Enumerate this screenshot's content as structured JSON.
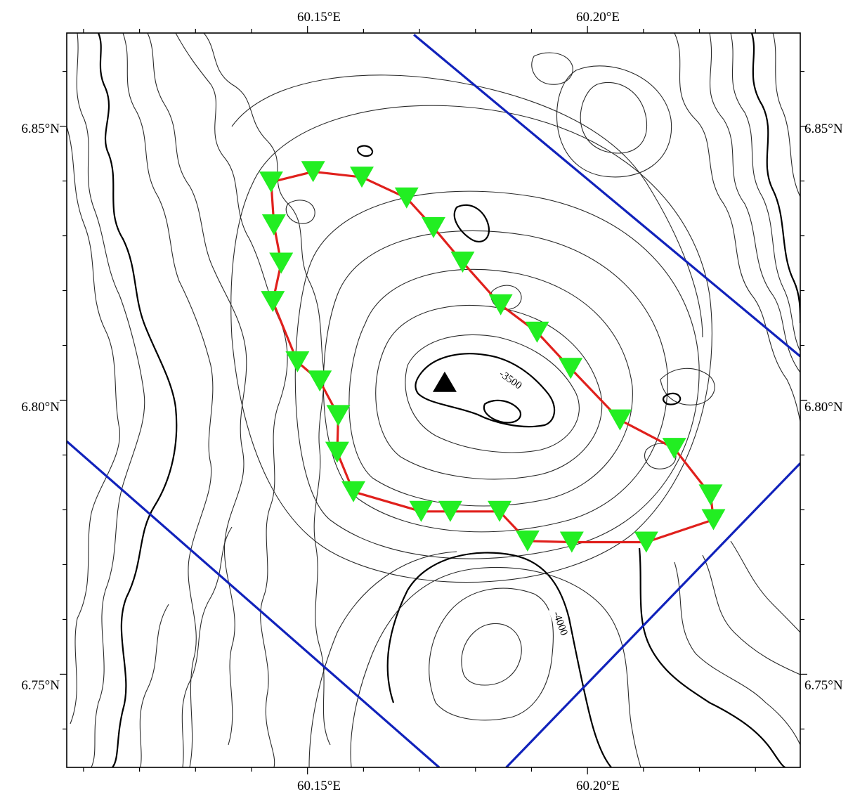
{
  "map": {
    "lon_range": [
      60.107,
      60.238
    ],
    "lat_range": [
      6.733,
      6.867
    ],
    "axis_ticks": {
      "lon": [
        {
          "value": 60.15,
          "label": "60.15°E"
        },
        {
          "value": 60.2,
          "label": "60.20°E"
        }
      ],
      "lat": [
        {
          "value": 6.85,
          "label": "6.85°N"
        },
        {
          "value": 6.8,
          "label": "6.80°N"
        },
        {
          "value": 6.75,
          "label": "6.75°N"
        }
      ]
    },
    "contour_labels": [
      {
        "text": "-3500"
      },
      {
        "text": "-4000"
      }
    ],
    "colors": {
      "survey_line": "#e0201c",
      "station_marker": "#22ee22",
      "boundary_lines": "#1122bb",
      "center_marker": "#000000",
      "contours": "#2a2a2a"
    },
    "center_marker": {
      "lon": 60.1745,
      "lat": 6.8033
    },
    "stations": [
      {
        "lon": 60.1435,
        "lat": 6.8398
      },
      {
        "lon": 60.151,
        "lat": 6.8417
      },
      {
        "lon": 60.1597,
        "lat": 6.8407
      },
      {
        "lon": 60.1677,
        "lat": 6.8369
      },
      {
        "lon": 60.1725,
        "lat": 6.8315
      },
      {
        "lon": 60.1777,
        "lat": 6.8252
      },
      {
        "lon": 60.1845,
        "lat": 6.8174
      },
      {
        "lon": 60.191,
        "lat": 6.8124
      },
      {
        "lon": 60.197,
        "lat": 6.8058
      },
      {
        "lon": 60.2058,
        "lat": 6.7964
      },
      {
        "lon": 60.2155,
        "lat": 6.7912
      },
      {
        "lon": 60.222,
        "lat": 6.7827
      },
      {
        "lon": 60.2225,
        "lat": 6.7782
      },
      {
        "lon": 60.2105,
        "lat": 6.7741
      },
      {
        "lon": 60.1972,
        "lat": 6.7741
      },
      {
        "lon": 60.1893,
        "lat": 6.7743
      },
      {
        "lon": 60.1843,
        "lat": 6.7797
      },
      {
        "lon": 60.1755,
        "lat": 6.7797
      },
      {
        "lon": 60.1703,
        "lat": 6.7797
      },
      {
        "lon": 60.1582,
        "lat": 6.7833
      },
      {
        "lon": 60.1553,
        "lat": 6.7905
      },
      {
        "lon": 60.1555,
        "lat": 6.7972
      },
      {
        "lon": 60.1522,
        "lat": 6.8035
      },
      {
        "lon": 60.1482,
        "lat": 6.807
      },
      {
        "lon": 60.1438,
        "lat": 6.818
      },
      {
        "lon": 60.1453,
        "lat": 6.825
      },
      {
        "lon": 60.144,
        "lat": 6.832
      }
    ],
    "boundary_lines": [
      [
        {
          "lon": 60.169,
          "lat": 6.8667
        },
        {
          "lon": 60.238,
          "lat": 6.808
        }
      ],
      [
        {
          "lon": 60.107,
          "lat": 6.7925
        },
        {
          "lon": 60.1735,
          "lat": 6.733
        }
      ],
      [
        {
          "lon": 60.1855,
          "lat": 6.733
        },
        {
          "lon": 60.238,
          "lat": 6.7885
        }
      ]
    ]
  }
}
